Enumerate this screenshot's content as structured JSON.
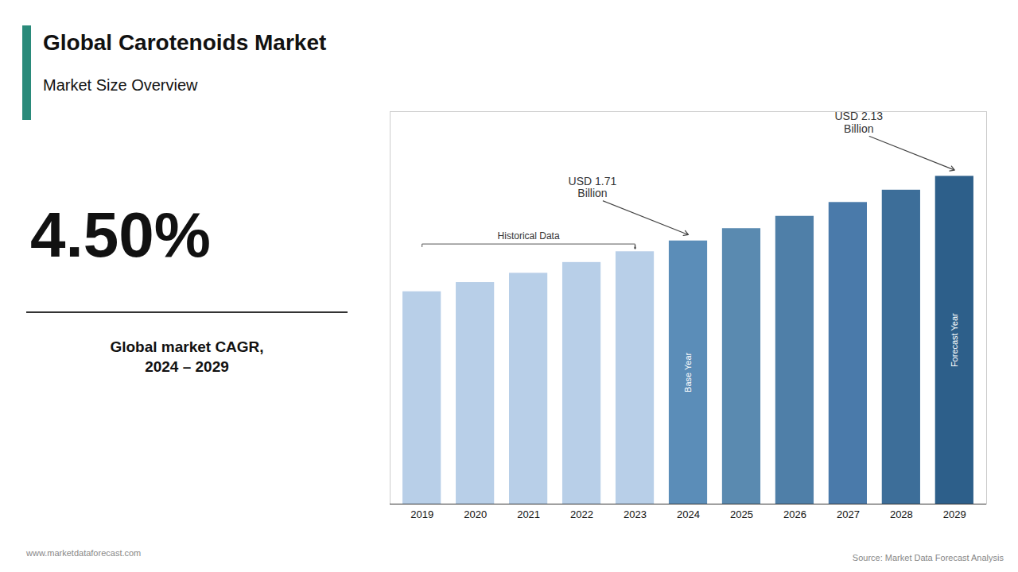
{
  "chart_data": {
    "type": "bar",
    "title": "Global Carotenoids Market",
    "subtitle": "Market Size Overview",
    "kpi": "4.50%",
    "kpi_label": "Global market CAGR,\n2024 – 2029",
    "categories": [
      "2019",
      "2020",
      "2021",
      "2022",
      "2023",
      "2024",
      "2025",
      "2026",
      "2027",
      "2028",
      "2029"
    ],
    "values": [
      1.38,
      1.44,
      1.5,
      1.57,
      1.64,
      1.71,
      1.79,
      1.87,
      1.96,
      2.04,
      2.13
    ],
    "colors": [
      "#b8cfe8",
      "#b8cfe8",
      "#b8cfe8",
      "#b8cfe8",
      "#b8cfe8",
      "#5b8db8",
      "#5a8ab0",
      "#4f7fa8",
      "#4a7aaa",
      "#3d6e99",
      "#2d5f8a"
    ],
    "ylim": [
      0,
      2.55
    ],
    "tick_labels": "x",
    "grid": false,
    "annotations": [
      {
        "text": "Historical Data",
        "from": "2019",
        "to": "2023"
      },
      {
        "text": "USD 1.71\nBillion",
        "at": "2024"
      },
      {
        "text": "USD 2.13\nBillion",
        "at": "2029"
      }
    ],
    "bar_labels": [
      {
        "text": "Base Year",
        "at": "2024"
      },
      {
        "text": "Forecast Year",
        "at": "2029"
      }
    ],
    "website": "www.marketdataforecast.com",
    "source": "Source: Market Data Forecast Analysis"
  }
}
